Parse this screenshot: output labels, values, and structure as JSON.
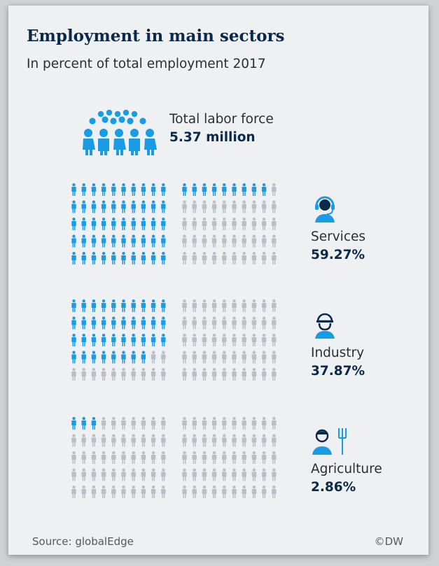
{
  "title": "Employment in main sectors",
  "subtitle": "In percent of total employment 2017",
  "total": {
    "label": "Total labor force",
    "value": "5.37 million"
  },
  "colors": {
    "filled": "#1a9be6",
    "empty": "#b7bfc8",
    "title": "#0b2a4a"
  },
  "chart_data": {
    "type": "pictogram",
    "units_per_grid": 100,
    "title": "Employment in main sectors",
    "subtitle": "In percent of total employment 2017",
    "total_labor_force": "5.37 million",
    "sectors": [
      {
        "name": "Services",
        "label": "59.27%",
        "value": 59.27,
        "filled_figures": 59,
        "icon": "service-agent-headset-icon"
      },
      {
        "name": "Industry",
        "label": "37.87%",
        "value": 37.87,
        "filled_figures": 38,
        "icon": "worker-helmet-icon"
      },
      {
        "name": "Agriculture",
        "label": "2.86%",
        "value": 2.86,
        "filled_figures": 3,
        "icon": "farmer-pitchfork-icon"
      }
    ]
  },
  "sectors": [
    {
      "label": "Services",
      "value": "59.27%"
    },
    {
      "label": "Industry",
      "value": "37.87%"
    },
    {
      "label": "Agriculture",
      "value": "2.86%"
    }
  ],
  "footer": {
    "source": "Source: globalEdge",
    "credit": "©DW"
  }
}
